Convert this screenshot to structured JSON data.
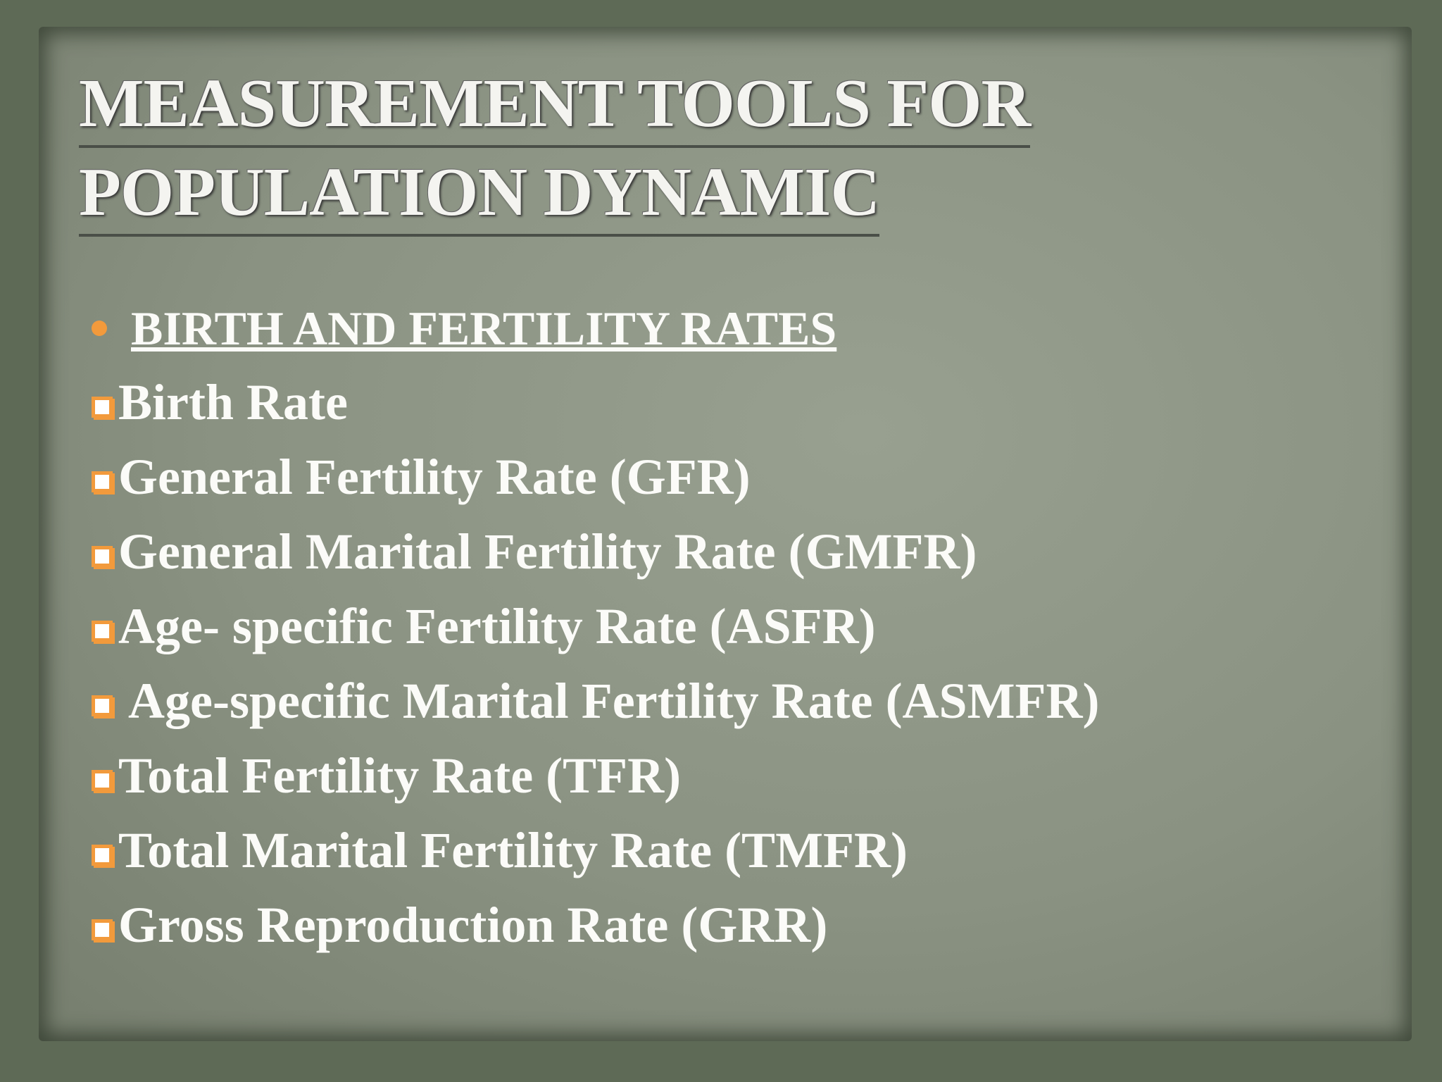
{
  "title": {
    "lines": [
      "MEASUREMENT TOOLS FOR",
      "POPULATION DYNAMIC"
    ]
  },
  "heading": "BIRTH AND FERTILITY RATES",
  "items": [
    "Birth Rate",
    "General Fertility Rate (GFR)",
    "General Marital Fertility Rate (GMFR)",
    "Age- specific Fertility Rate (ASFR)",
    " Age-specific Marital Fertility Rate (ASMFR)",
    "Total Fertility Rate (TFR)",
    "Total Marital Fertility Rate (TMFR)",
    "Gross Reproduction Rate (GRR)"
  ]
}
